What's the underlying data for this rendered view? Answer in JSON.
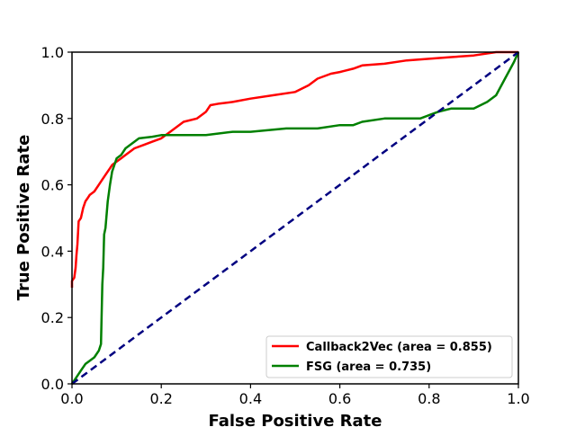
{
  "chart_data": {
    "type": "line",
    "title": "",
    "xlabel": "False Positive Rate",
    "ylabel": "True Positive Rate",
    "xlim": [
      0.0,
      1.0
    ],
    "ylim": [
      0.0,
      1.0
    ],
    "xticks": [
      "0.0",
      "0.2",
      "0.4",
      "0.6",
      "0.8",
      "1.0"
    ],
    "yticks": [
      "0.0",
      "0.2",
      "0.4",
      "0.6",
      "0.8",
      "1.0"
    ],
    "grid": false,
    "legend_position": "lower-right",
    "series": [
      {
        "name": "Callback2Vec (area = 0.855)",
        "color": "#ff0000",
        "style": "solid",
        "x": [
          0.0,
          0.0,
          0.005,
          0.008,
          0.01,
          0.012,
          0.015,
          0.02,
          0.025,
          0.03,
          0.035,
          0.04,
          0.05,
          0.06,
          0.07,
          0.08,
          0.085,
          0.09,
          0.1,
          0.11,
          0.12,
          0.14,
          0.16,
          0.18,
          0.2,
          0.22,
          0.25,
          0.28,
          0.3,
          0.31,
          0.33,
          0.36,
          0.4,
          0.45,
          0.5,
          0.53,
          0.55,
          0.58,
          0.6,
          0.63,
          0.65,
          0.7,
          0.75,
          0.8,
          0.85,
          0.9,
          0.95,
          1.0
        ],
        "y": [
          0.29,
          0.31,
          0.32,
          0.35,
          0.39,
          0.42,
          0.49,
          0.5,
          0.53,
          0.55,
          0.56,
          0.57,
          0.58,
          0.6,
          0.62,
          0.64,
          0.65,
          0.66,
          0.67,
          0.68,
          0.69,
          0.71,
          0.72,
          0.73,
          0.74,
          0.76,
          0.79,
          0.8,
          0.82,
          0.84,
          0.845,
          0.85,
          0.86,
          0.87,
          0.88,
          0.9,
          0.92,
          0.935,
          0.94,
          0.95,
          0.96,
          0.965,
          0.975,
          0.98,
          0.985,
          0.99,
          1.0,
          1.0
        ]
      },
      {
        "name": "FSG (area = 0.735)",
        "color": "#008000",
        "style": "solid",
        "x": [
          0.0,
          0.01,
          0.02,
          0.03,
          0.04,
          0.05,
          0.06,
          0.065,
          0.068,
          0.07,
          0.072,
          0.075,
          0.08,
          0.085,
          0.09,
          0.095,
          0.1,
          0.11,
          0.12,
          0.13,
          0.14,
          0.15,
          0.18,
          0.2,
          0.25,
          0.3,
          0.36,
          0.4,
          0.48,
          0.55,
          0.6,
          0.63,
          0.65,
          0.7,
          0.75,
          0.78,
          0.8,
          0.82,
          0.85,
          0.9,
          0.93,
          0.95,
          0.97,
          0.99,
          1.0
        ],
        "y": [
          0.0,
          0.02,
          0.04,
          0.06,
          0.07,
          0.08,
          0.1,
          0.12,
          0.3,
          0.35,
          0.45,
          0.47,
          0.55,
          0.6,
          0.64,
          0.66,
          0.68,
          0.69,
          0.71,
          0.72,
          0.73,
          0.74,
          0.745,
          0.75,
          0.75,
          0.75,
          0.76,
          0.76,
          0.77,
          0.77,
          0.78,
          0.78,
          0.79,
          0.8,
          0.8,
          0.8,
          0.81,
          0.82,
          0.83,
          0.83,
          0.85,
          0.87,
          0.92,
          0.97,
          1.0
        ]
      },
      {
        "name": "",
        "color": "#000080",
        "style": "dashed",
        "x": [
          0.0,
          1.0
        ],
        "y": [
          0.0,
          1.0
        ]
      }
    ]
  }
}
